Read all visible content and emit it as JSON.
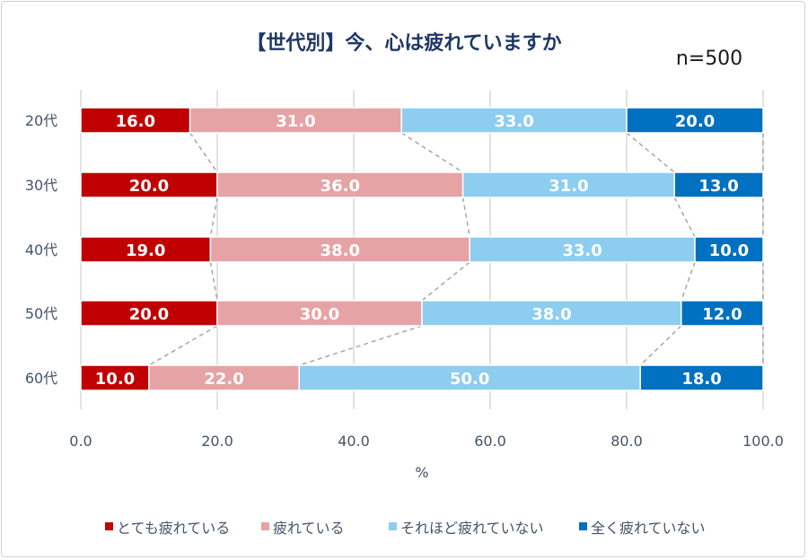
{
  "chart_data": {
    "type": "bar",
    "orientation": "horizontal",
    "stacked": true,
    "title": "【世代別】今、心は疲れていますか",
    "annotation": "n=500",
    "xlabel": "%",
    "ylabel": "",
    "xlim": [
      0,
      100
    ],
    "x_ticks": [
      "0.0",
      "20.0",
      "40.0",
      "60.0",
      "80.0",
      "100.0"
    ],
    "grid": true,
    "legend_position": "bottom",
    "categories": [
      "20代",
      "30代",
      "40代",
      "50代",
      "60代"
    ],
    "series": [
      {
        "name": "とても疲れている",
        "color": "#C00000",
        "values": [
          16.0,
          20.0,
          19.0,
          20.0,
          10.0
        ]
      },
      {
        "name": "疲れている",
        "color": "#E6A3A5",
        "values": [
          31.0,
          36.0,
          38.0,
          30.0,
          22.0
        ]
      },
      {
        "name": "それほど疲れていない",
        "color": "#8DCDF0",
        "values": [
          33.0,
          31.0,
          33.0,
          38.0,
          50.0
        ]
      },
      {
        "name": "全く疲れていない",
        "color": "#0070C0",
        "values": [
          20.0,
          13.0,
          10.0,
          12.0,
          18.0
        ]
      }
    ],
    "series_lines": true
  }
}
